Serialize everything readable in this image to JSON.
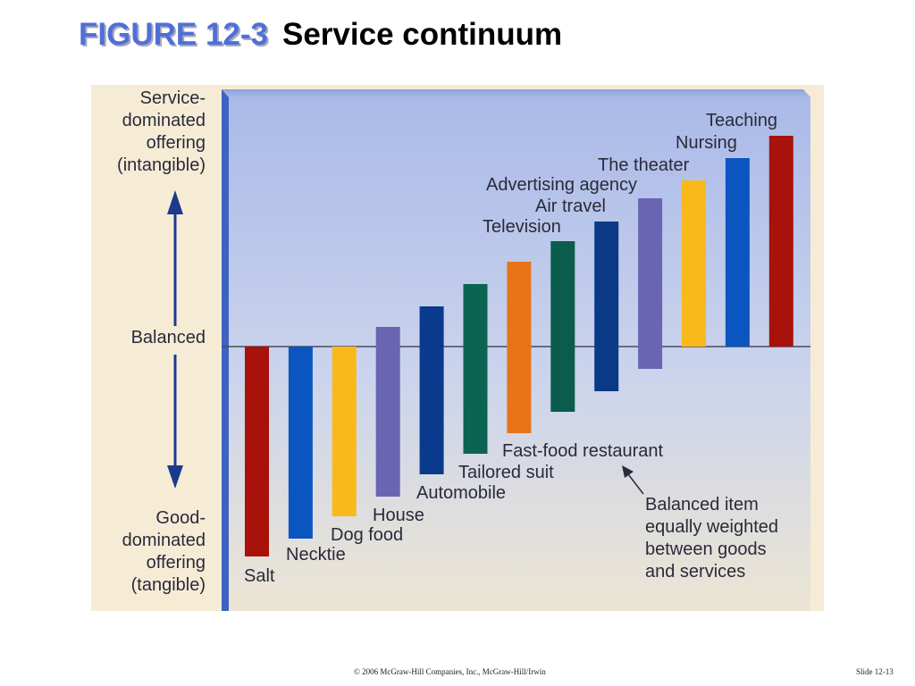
{
  "slide": {
    "figure_label": "FIGURE 12-3",
    "title": "Service continuum",
    "copyright": "© 2006 McGraw-Hill Companies, Inc., McGraw-Hill/Irwin",
    "slide_number": "Slide 12-13"
  },
  "axis": {
    "top_label": [
      "Service-",
      "dominated",
      "offering",
      "(intangible)"
    ],
    "middle_label": "Balanced",
    "bottom_label": [
      "Good-",
      "dominated",
      "offering",
      "(tangible)"
    ]
  },
  "chart_data": {
    "type": "bar",
    "categories": [
      "Salt",
      "Necktie",
      "Dog food",
      "House",
      "Automobile",
      "Tailored suit",
      "Fast-food restaurant",
      "Television",
      "Air travel",
      "Advertising agency",
      "The theater",
      "Nursing",
      "Teaching"
    ],
    "series": [
      {
        "values": [
          [
            -235,
            0
          ],
          [
            -215,
            0
          ],
          [
            -190,
            0
          ],
          [
            -168,
            22
          ],
          [
            -143,
            45
          ],
          [
            -120,
            70
          ],
          [
            -97,
            95
          ],
          [
            -73,
            118
          ],
          [
            -50,
            140
          ],
          [
            -25,
            166
          ],
          [
            0,
            186
          ],
          [
            0,
            211
          ],
          [
            0,
            236
          ]
        ]
      }
    ],
    "value_format": "[bottom, top] offset from the balanced line",
    "colors": [
      "#a8120a",
      "#0b55c0",
      "#f9b91a",
      "#6a65b2",
      "#0a3a8c",
      "#0b6451",
      "#e8741a",
      "#0b5c4c",
      "#0a3a86",
      "#6a65b2",
      "#f9b91a",
      "#0b55c0",
      "#a8120a"
    ],
    "annotation": [
      "Balanced item",
      "equally weighted",
      "between goods",
      "and services"
    ]
  }
}
